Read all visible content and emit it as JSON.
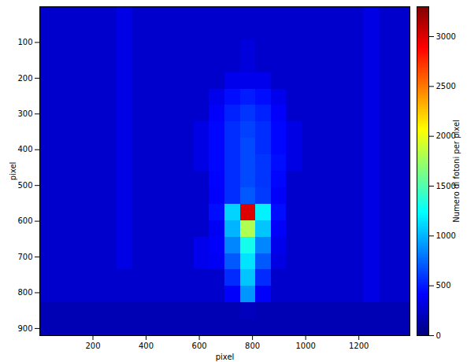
{
  "chart_data": {
    "type": "heatmap",
    "x_label": "pixel",
    "y_label": "pixel",
    "xlim": [
      0,
      1392
    ],
    "ylim": [
      0,
      920
    ],
    "xticks": [
      200,
      400,
      600,
      800,
      1000,
      1200
    ],
    "yticks": [
      100,
      200,
      300,
      400,
      500,
      600,
      700,
      800,
      900
    ],
    "cells": {
      "x_edges": [
        0,
        58,
        116,
        174,
        232,
        290,
        348,
        406,
        464,
        522,
        580,
        638,
        696,
        754,
        812,
        870,
        928,
        986,
        1044,
        1102,
        1160,
        1218,
        1276,
        1334,
        1392
      ],
      "y_edges": [
        0,
        46,
        92,
        138,
        184,
        230,
        276,
        322,
        368,
        414,
        460,
        506,
        552,
        598,
        644,
        690,
        736,
        782,
        828,
        874,
        920
      ],
      "values": [
        [
          250,
          250,
          250,
          250,
          250,
          330,
          250,
          250,
          250,
          250,
          250,
          250,
          250,
          250,
          250,
          250,
          250,
          250,
          250,
          250,
          250,
          330,
          250,
          250
        ],
        [
          250,
          250,
          250,
          250,
          250,
          330,
          250,
          250,
          250,
          250,
          250,
          250,
          250,
          250,
          250,
          250,
          250,
          250,
          250,
          250,
          250,
          330,
          250,
          250
        ],
        [
          250,
          250,
          250,
          250,
          250,
          330,
          250,
          250,
          250,
          250,
          250,
          250,
          250,
          300,
          250,
          250,
          250,
          250,
          250,
          250,
          250,
          330,
          250,
          250
        ],
        [
          250,
          250,
          250,
          250,
          250,
          330,
          250,
          250,
          250,
          250,
          250,
          250,
          250,
          300,
          250,
          250,
          250,
          250,
          250,
          250,
          250,
          330,
          250,
          250
        ],
        [
          250,
          250,
          250,
          250,
          250,
          330,
          250,
          250,
          250,
          250,
          250,
          250,
          350,
          350,
          350,
          250,
          250,
          250,
          250,
          250,
          250,
          330,
          250,
          250
        ],
        [
          250,
          250,
          250,
          250,
          250,
          330,
          250,
          250,
          250,
          250,
          250,
          350,
          450,
          500,
          450,
          350,
          250,
          250,
          250,
          250,
          250,
          330,
          250,
          250
        ],
        [
          250,
          250,
          250,
          250,
          250,
          330,
          250,
          250,
          250,
          250,
          250,
          400,
          520,
          580,
          520,
          400,
          250,
          250,
          250,
          250,
          250,
          330,
          250,
          250
        ],
        [
          250,
          250,
          250,
          250,
          250,
          330,
          250,
          250,
          250,
          250,
          330,
          430,
          560,
          620,
          560,
          430,
          330,
          250,
          250,
          250,
          250,
          330,
          250,
          250
        ],
        [
          250,
          250,
          250,
          250,
          250,
          330,
          250,
          250,
          250,
          250,
          330,
          430,
          560,
          650,
          560,
          430,
          330,
          250,
          250,
          250,
          250,
          330,
          250,
          250
        ],
        [
          250,
          250,
          250,
          250,
          250,
          330,
          250,
          250,
          250,
          250,
          330,
          430,
          560,
          650,
          580,
          450,
          330,
          250,
          250,
          250,
          250,
          330,
          250,
          250
        ],
        [
          250,
          250,
          250,
          250,
          250,
          330,
          250,
          250,
          250,
          250,
          250,
          420,
          560,
          650,
          580,
          430,
          250,
          250,
          250,
          250,
          250,
          330,
          250,
          250
        ],
        [
          250,
          250,
          250,
          250,
          250,
          330,
          250,
          250,
          250,
          250,
          250,
          400,
          560,
          700,
          600,
          400,
          250,
          250,
          250,
          250,
          250,
          330,
          250,
          250
        ],
        [
          250,
          250,
          250,
          250,
          250,
          330,
          250,
          250,
          250,
          250,
          250,
          450,
          1100,
          3000,
          1200,
          450,
          250,
          250,
          250,
          250,
          250,
          330,
          250,
          250
        ],
        [
          250,
          250,
          250,
          250,
          250,
          330,
          250,
          250,
          250,
          250,
          250,
          380,
          1000,
          1800,
          1050,
          400,
          250,
          250,
          250,
          250,
          250,
          330,
          250,
          250
        ],
        [
          250,
          250,
          250,
          250,
          250,
          330,
          250,
          250,
          250,
          250,
          350,
          400,
          850,
          1300,
          850,
          350,
          250,
          250,
          250,
          250,
          250,
          330,
          250,
          250
        ],
        [
          250,
          250,
          250,
          250,
          250,
          330,
          250,
          250,
          250,
          250,
          350,
          380,
          700,
          1150,
          700,
          320,
          250,
          250,
          250,
          250,
          250,
          330,
          250,
          250
        ],
        [
          250,
          250,
          250,
          250,
          250,
          250,
          250,
          250,
          250,
          250,
          250,
          250,
          550,
          1050,
          550,
          250,
          250,
          250,
          250,
          250,
          250,
          330,
          250,
          250
        ],
        [
          250,
          250,
          250,
          250,
          250,
          250,
          250,
          250,
          250,
          250,
          250,
          250,
          400,
          900,
          400,
          250,
          250,
          250,
          250,
          250,
          250,
          330,
          250,
          250
        ],
        [
          170,
          170,
          170,
          170,
          170,
          170,
          170,
          170,
          170,
          170,
          170,
          170,
          170,
          200,
          170,
          170,
          170,
          170,
          170,
          170,
          170,
          170,
          170,
          170
        ],
        [
          170,
          170,
          170,
          170,
          170,
          170,
          170,
          170,
          170,
          170,
          170,
          170,
          170,
          170,
          170,
          170,
          170,
          170,
          170,
          170,
          170,
          170,
          170,
          170
        ]
      ]
    },
    "colorbar": {
      "label": "Numero di fotoni per pixel",
      "range": [
        0,
        3300
      ],
      "ticks": [
        0,
        500,
        1000,
        1500,
        2000,
        2500,
        3000
      ]
    }
  }
}
